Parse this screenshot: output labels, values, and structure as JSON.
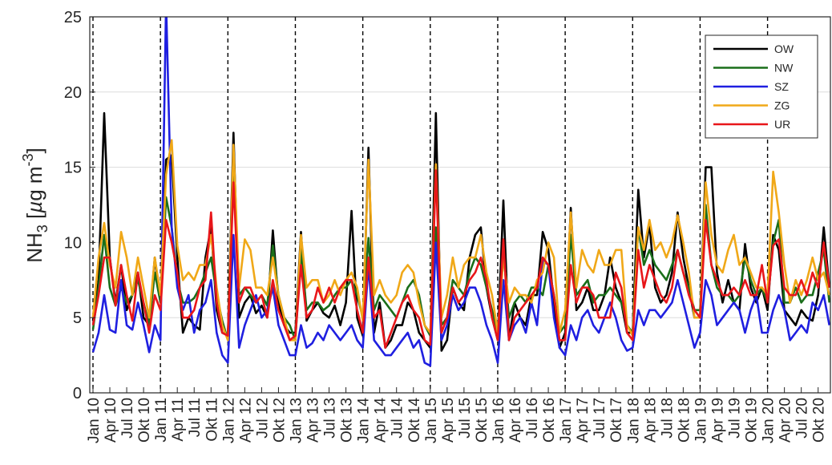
{
  "chart_data": {
    "type": "line",
    "ylabel": "NH₃ [µg m⁻³]",
    "ylabel_parts": {
      "base": "NH",
      "sub": "3",
      "mid": " [",
      "mu": "µ",
      "unit": "g m",
      "sup": "-3",
      "close": "]"
    },
    "ylim": [
      0,
      25
    ],
    "yticks": [
      0,
      5,
      10,
      15,
      20,
      25
    ],
    "x_start": "Jan 10",
    "x_end": "Dec 20",
    "xtick_labels": [
      "Jan 10",
      "Apr 10",
      "Jul 10",
      "Okt 10",
      "Jan 11",
      "Apr 11",
      "Jul 11",
      "Okt 11",
      "Jan 12",
      "Apr 12",
      "Jul 12",
      "Okt 12",
      "Jan 13",
      "Apr 13",
      "Jul 13",
      "Okt 13",
      "Jan 14",
      "Apr 14",
      "Jul 14",
      "Okt 14",
      "Jan 15",
      "Apr 15",
      "Jul 15",
      "Okt 15",
      "Jan 16",
      "Apr 16",
      "Jul 16",
      "Okt 16",
      "Jan 17",
      "Apr 17",
      "Jul 17",
      "Okt 17",
      "Jan 18",
      "Apr 18",
      "Jul 18",
      "Okt 18",
      "Jan 19",
      "Apr 19",
      "Jul 19",
      "Okt 19",
      "Jan 20",
      "Apr 20",
      "Jul 20",
      "Okt 20"
    ],
    "year_lines": [
      "Jan 10",
      "Jan 11",
      "Jan 12",
      "Jan 13",
      "Jan 14",
      "Jan 15",
      "Jan 16",
      "Jan 17",
      "Jan 18",
      "Jan 19",
      "Jan 20"
    ],
    "grid": "horizontal",
    "legend": "top-right",
    "series": [
      {
        "name": "OW",
        "color": "#000000",
        "values": [
          4.8,
          7.5,
          18.6,
          9.0,
          6.0,
          8.5,
          5.5,
          6.5,
          8.0,
          5.0,
          4.5,
          9.0,
          6.0,
          15.5,
          15.8,
          9.0,
          4.0,
          5.0,
          4.5,
          4.2,
          9.0,
          11.0,
          5.5,
          4.0,
          3.8,
          17.3,
          5.0,
          6.0,
          6.5,
          5.3,
          5.8,
          5.0,
          10.8,
          6.0,
          4.5,
          4.0,
          4.0,
          10.7,
          4.8,
          5.5,
          6.0,
          5.3,
          5.0,
          5.8,
          4.5,
          6.0,
          12.1,
          5.0,
          3.8,
          16.3,
          4.0,
          6.0,
          3.0,
          3.5,
          4.5,
          4.5,
          6.0,
          5.5,
          4.0,
          3.5,
          3.0,
          18.6,
          2.8,
          3.5,
          7.0,
          6.0,
          5.5,
          9.0,
          10.5,
          11.0,
          7.0,
          5.0,
          3.5,
          12.8,
          3.5,
          6.0,
          5.0,
          4.5,
          6.5,
          6.5,
          10.7,
          9.5,
          6.0,
          3.0,
          4.0,
          12.3,
          5.5,
          6.0,
          7.0,
          5.5,
          5.5,
          6.5,
          9.0,
          7.0,
          6.0,
          4.0,
          4.0,
          13.5,
          9.0,
          11.2,
          7.0,
          6.0,
          6.5,
          8.0,
          12.0,
          9.0,
          7.0,
          5.0,
          5.0,
          15.0,
          15.0,
          8.0,
          6.0,
          7.5,
          6.0,
          5.5,
          9.9,
          7.0,
          6.0,
          7.0,
          5.5,
          10.5,
          9.5,
          5.5,
          5.0,
          4.5,
          5.5,
          5.0,
          4.8,
          6.5,
          11.0,
          7.0
        ]
      },
      {
        "name": "NW",
        "color": "#1a6e1a",
        "values": [
          4.2,
          7.0,
          10.5,
          7.0,
          5.8,
          7.0,
          6.0,
          6.5,
          7.5,
          6.0,
          4.5,
          8.0,
          6.0,
          13.0,
          11.0,
          7.5,
          6.0,
          6.0,
          6.3,
          7.0,
          8.0,
          9.0,
          6.5,
          4.8,
          3.5,
          15.5,
          6.5,
          7.0,
          6.5,
          6.0,
          6.5,
          5.8,
          9.8,
          6.5,
          5.0,
          4.5,
          3.5,
          9.5,
          5.5,
          6.0,
          6.0,
          5.5,
          5.8,
          6.5,
          7.0,
          7.0,
          7.5,
          6.5,
          5.0,
          10.3,
          5.5,
          6.5,
          6.0,
          5.5,
          5.0,
          6.0,
          7.0,
          7.5,
          6.5,
          4.5,
          3.8,
          11.0,
          4.5,
          5.0,
          7.5,
          7.0,
          6.5,
          8.0,
          9.0,
          8.5,
          7.0,
          5.5,
          4.0,
          9.5,
          5.0,
          6.0,
          6.5,
          6.0,
          7.0,
          7.0,
          6.5,
          8.5,
          6.5,
          4.0,
          4.5,
          10.5,
          6.5,
          7.0,
          7.5,
          6.0,
          6.5,
          6.5,
          7.0,
          6.5,
          6.0,
          4.5,
          4.0,
          11.0,
          8.5,
          9.5,
          8.5,
          8.0,
          7.5,
          8.5,
          9.5,
          8.0,
          7.0,
          5.5,
          5.5,
          12.5,
          8.5,
          7.0,
          6.5,
          6.5,
          6.0,
          6.5,
          9.0,
          7.5,
          6.5,
          7.0,
          6.0,
          10.0,
          11.5,
          6.0,
          6.0,
          7.0,
          6.0,
          6.5,
          6.5,
          8.0,
          9.5,
          6.0
        ]
      },
      {
        "name": "SZ",
        "color": "#1f1fe0",
        "values": [
          2.7,
          4.0,
          6.5,
          4.2,
          4.0,
          7.5,
          4.5,
          4.2,
          6.0,
          4.5,
          2.7,
          4.5,
          3.5,
          26.0,
          11.0,
          7.0,
          5.5,
          6.5,
          4.0,
          5.5,
          6.0,
          7.5,
          4.0,
          2.5,
          2.0,
          10.5,
          3.0,
          4.5,
          5.5,
          6.5,
          5.0,
          5.5,
          7.0,
          4.5,
          3.5,
          2.5,
          2.5,
          4.5,
          3.0,
          3.3,
          4.0,
          3.5,
          4.5,
          4.0,
          3.5,
          4.0,
          4.5,
          3.5,
          3.0,
          8.5,
          3.5,
          3.0,
          2.5,
          2.5,
          3.0,
          3.5,
          4.0,
          3.0,
          3.5,
          2.0,
          1.8,
          10.0,
          3.5,
          4.5,
          6.5,
          5.5,
          6.0,
          7.0,
          7.0,
          6.0,
          4.5,
          3.5,
          2.0,
          7.5,
          3.5,
          4.5,
          5.0,
          4.0,
          6.0,
          4.5,
          8.8,
          8.5,
          5.0,
          3.0,
          2.5,
          4.5,
          3.5,
          5.0,
          5.5,
          4.5,
          4.0,
          5.0,
          6.0,
          5.0,
          3.5,
          2.8,
          3.0,
          5.5,
          4.5,
          5.5,
          5.5,
          5.0,
          5.5,
          6.0,
          7.5,
          6.0,
          4.5,
          3.0,
          4.0,
          7.5,
          6.5,
          4.5,
          5.0,
          5.5,
          6.0,
          5.5,
          4.0,
          5.5,
          6.5,
          4.0,
          4.0,
          5.5,
          6.5,
          5.5,
          3.5,
          4.0,
          4.5,
          4.0,
          6.0,
          5.5,
          6.5,
          4.5
        ]
      },
      {
        "name": "ZG",
        "color": "#f0a818",
        "values": [
          5.0,
          9.0,
          11.3,
          8.5,
          7.0,
          10.7,
          9.0,
          6.5,
          9.0,
          7.0,
          5.0,
          9.0,
          6.5,
          14.5,
          16.8,
          9.8,
          7.5,
          8.0,
          7.5,
          8.5,
          8.5,
          10.5,
          7.0,
          4.5,
          3.5,
          16.5,
          7.0,
          10.2,
          9.5,
          7.0,
          7.0,
          6.5,
          9.0,
          6.5,
          5.0,
          3.5,
          3.5,
          10.5,
          7.0,
          7.5,
          7.5,
          6.0,
          6.5,
          7.5,
          6.5,
          7.5,
          8.0,
          7.0,
          4.8,
          15.5,
          6.5,
          7.5,
          6.5,
          6.0,
          6.5,
          8.0,
          8.5,
          8.0,
          6.0,
          4.5,
          4.0,
          15.2,
          5.0,
          6.5,
          9.0,
          7.0,
          8.5,
          9.0,
          9.0,
          10.5,
          8.0,
          6.5,
          4.0,
          9.0,
          6.0,
          7.0,
          6.5,
          6.5,
          6.0,
          7.5,
          8.0,
          10.0,
          9.0,
          4.0,
          5.5,
          12.0,
          7.0,
          9.5,
          8.5,
          8.0,
          9.5,
          8.5,
          8.5,
          9.5,
          9.5,
          4.5,
          3.8,
          11.0,
          9.5,
          11.5,
          9.5,
          10.0,
          9.0,
          10.0,
          11.8,
          10.0,
          8.0,
          5.0,
          5.0,
          14.0,
          10.5,
          8.5,
          8.0,
          9.5,
          10.5,
          8.5,
          9.0,
          8.0,
          7.0,
          7.0,
          6.5,
          14.7,
          12.0,
          8.5,
          6.0,
          7.5,
          6.5,
          7.5,
          9.0,
          7.5,
          8.0,
          6.5
        ]
      },
      {
        "name": "UR",
        "color": "#e8161a",
        "values": [
          4.5,
          6.5,
          9.0,
          9.0,
          5.8,
          8.5,
          6.5,
          4.8,
          8.0,
          6.0,
          4.0,
          6.5,
          5.5,
          11.5,
          10.0,
          8.0,
          5.0,
          5.0,
          5.5,
          7.0,
          7.5,
          12.0,
          6.0,
          4.0,
          3.8,
          14.0,
          6.0,
          7.0,
          7.0,
          6.0,
          6.5,
          5.0,
          7.5,
          5.5,
          4.5,
          3.5,
          3.8,
          8.5,
          5.0,
          5.5,
          7.0,
          6.0,
          7.0,
          6.0,
          7.0,
          7.5,
          7.5,
          5.5,
          4.0,
          9.0,
          5.0,
          5.5,
          3.0,
          4.0,
          5.0,
          6.0,
          6.5,
          5.5,
          5.0,
          3.5,
          3.2,
          14.8,
          4.0,
          5.0,
          7.0,
          6.0,
          6.5,
          7.5,
          8.0,
          9.0,
          7.5,
          5.0,
          3.5,
          10.2,
          3.5,
          5.0,
          5.5,
          6.0,
          6.5,
          7.0,
          9.0,
          8.5,
          6.5,
          3.5,
          3.5,
          8.5,
          6.0,
          7.0,
          7.0,
          6.5,
          5.0,
          5.0,
          5.0,
          8.0,
          7.0,
          4.0,
          3.5,
          9.5,
          7.0,
          8.5,
          7.5,
          6.5,
          6.0,
          7.0,
          9.5,
          8.0,
          6.5,
          5.5,
          5.0,
          11.5,
          8.5,
          7.5,
          6.5,
          6.5,
          7.0,
          6.5,
          7.5,
          6.5,
          6.5,
          8.5,
          6.0,
          9.8,
          10.2,
          7.0,
          6.5,
          6.5,
          7.5,
          6.5,
          8.0,
          7.0,
          10.0,
          7.0
        ]
      }
    ]
  }
}
